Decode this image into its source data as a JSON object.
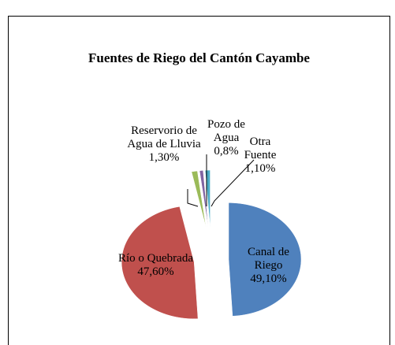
{
  "chart_data": {
    "type": "pie",
    "title": "Fuentes de Riego del Cantón Cayambe",
    "categories": [
      "Canal de Riego",
      "Río o Quebrada",
      "Reservorio de Agua de Lluvia",
      "Pozo de Agua",
      "Otra Fuente"
    ],
    "values": [
      49.1,
      47.6,
      1.3,
      0.8,
      1.1
    ],
    "value_labels": [
      "49,10%",
      "47,60%",
      "1,30%",
      "0,8%",
      "1,10%"
    ],
    "colors": [
      "#4f81bd",
      "#c0504d",
      "#9bbb59",
      "#8064a2",
      "#4bacc6"
    ]
  }
}
